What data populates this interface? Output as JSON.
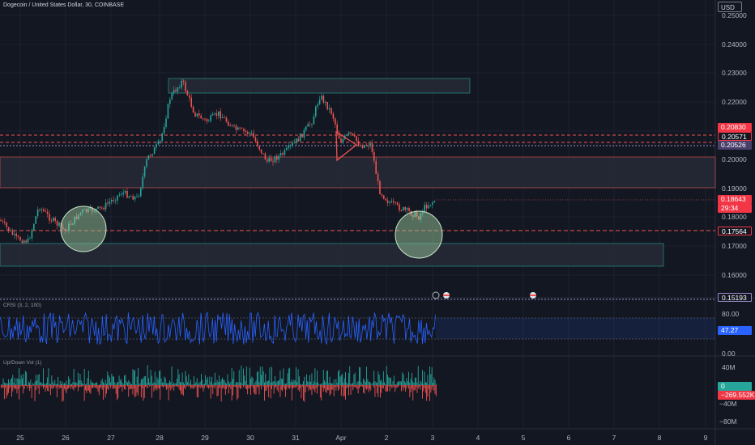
{
  "symbol": "Dogecoin / United States Dollar, 30, COINBASE",
  "currency": "USD",
  "price_axis": [
    "0.25000",
    "0.24000",
    "0.23000",
    "0.22000",
    "0.20000",
    "0.19000",
    "0.18000",
    "0.17000",
    "0.16000"
  ],
  "price_tags": {
    "level_a": "0.20830",
    "level_b": "0.20571",
    "level_c": "0.20526",
    "current": "0.18643",
    "countdown": "29:34",
    "level_d": "0.17564",
    "level_e": "0.15193"
  },
  "date_axis": [
    "25",
    "26",
    "27",
    "28",
    "29",
    "30",
    "31",
    "Apr",
    "2",
    "3",
    "4",
    "5",
    "6",
    "7",
    "8",
    "9"
  ],
  "indicator_crsi": {
    "label": "CRSI (3, 2, 100)",
    "ticks": [
      "80.00",
      "0.00"
    ],
    "value": "47.27"
  },
  "indicator_vol": {
    "label": "Up/Down Vol (1)",
    "ticks": [
      "40M",
      "0",
      "−40M",
      "−80M"
    ],
    "up_value": "0",
    "down_value": "−269.552K"
  },
  "colors": {
    "background": "#131722",
    "up": "#26a69a",
    "down": "#ef5350",
    "crsi": "#2962ff",
    "zone": "#2a2e39",
    "circle": "#a5d6a7"
  }
}
